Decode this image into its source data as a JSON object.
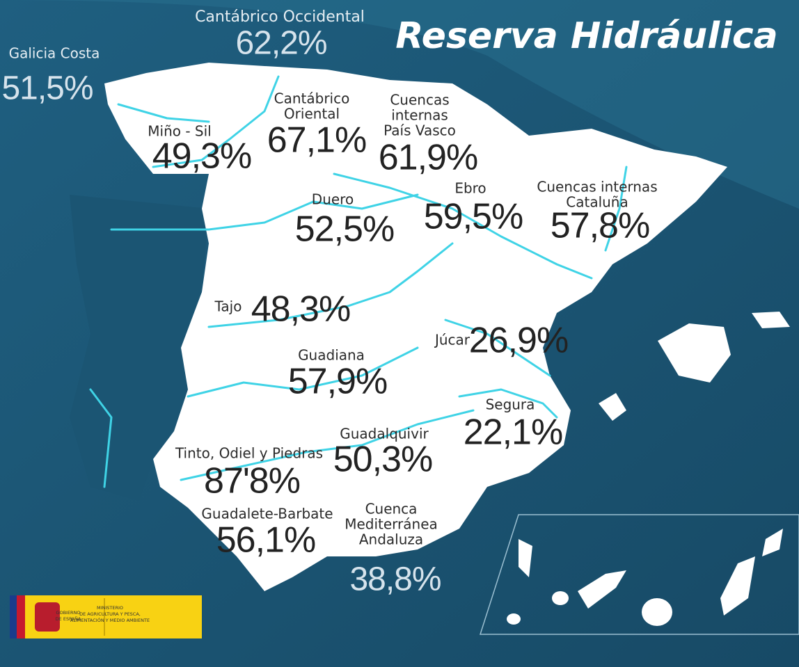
{
  "header": {
    "title": "Reserva Hidráulica"
  },
  "regions": [
    {
      "name": [
        "Galicia Costa"
      ],
      "value": "51,5%"
    },
    {
      "name": [
        "Cantábrico Occidental"
      ],
      "value": "62,2%"
    },
    {
      "name": [
        "Miño - Sil"
      ],
      "value": "49,3%"
    },
    {
      "name": [
        "Cantábrico",
        "Oriental"
      ],
      "value": "67,1%"
    },
    {
      "name": [
        "Cuencas",
        "internas",
        "País Vasco"
      ],
      "value": "61,9%"
    },
    {
      "name": [
        "Duero"
      ],
      "value": "52,5%"
    },
    {
      "name": [
        "Ebro"
      ],
      "value": "59,5%"
    },
    {
      "name": [
        "Cuencas internas",
        "Cataluña"
      ],
      "value": "57,8%"
    },
    {
      "name": [
        "Tajo"
      ],
      "value": "48,3%"
    },
    {
      "name": [
        "Júcar"
      ],
      "value": "26,9%"
    },
    {
      "name": [
        "Guadiana"
      ],
      "value": "57,9%"
    },
    {
      "name": [
        "Segura"
      ],
      "value": "22,1%"
    },
    {
      "name": [
        "Guadalquivir"
      ],
      "value": "50,3%"
    },
    {
      "name": [
        "Tinto, Odiel y Piedras"
      ],
      "value": "87'8%"
    },
    {
      "name": [
        "Guadalete-Barbate"
      ],
      "value": "56,1%"
    },
    {
      "name": [
        "Cuenca",
        "Mediterránea",
        "Andaluza"
      ],
      "value": "38,8%"
    }
  ],
  "logo": {
    "government": [
      "GOBIERNO",
      "DE ESPAÑA"
    ],
    "ministry": [
      "MINISTERIO",
      "DE AGRICULTURA Y PESCA,",
      "ALIMENTACIÓN Y MEDIO AMBIENTE"
    ]
  }
}
